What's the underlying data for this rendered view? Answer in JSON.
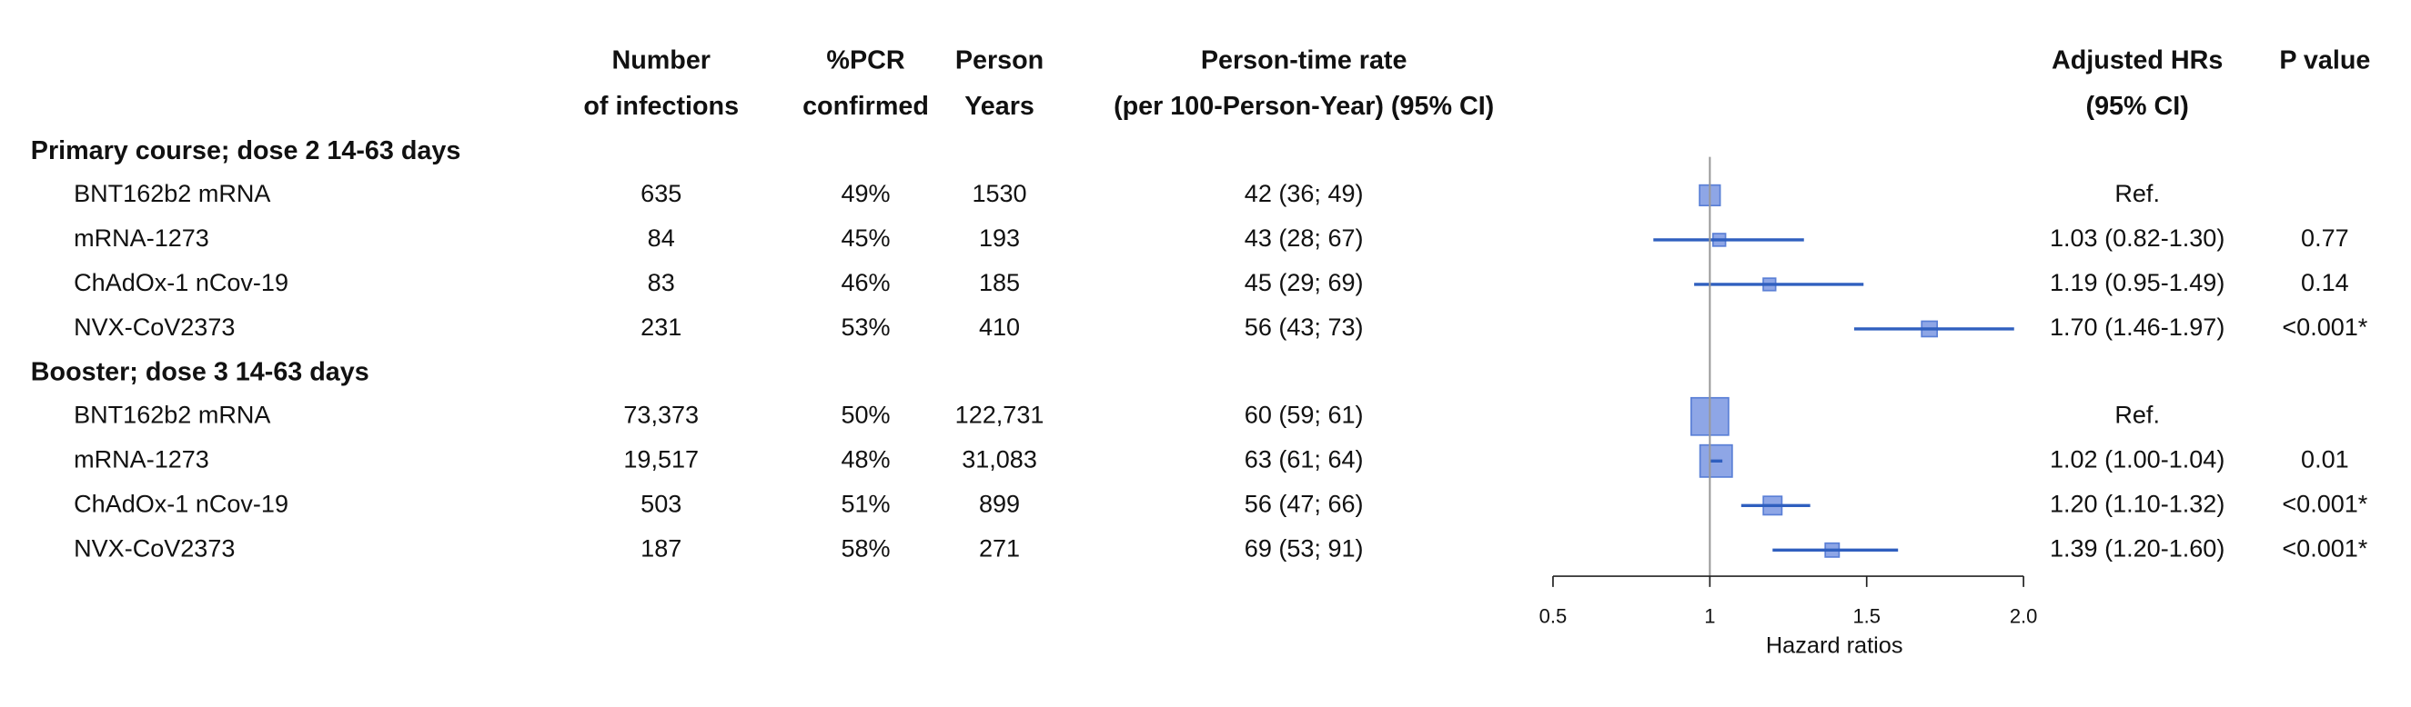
{
  "chart_data": {
    "type": "forest",
    "headers": {
      "infections": [
        "Number",
        "of infections"
      ],
      "pcr": [
        "%PCR",
        "confirmed"
      ],
      "person_years": [
        "Person",
        "Years"
      ],
      "rate": [
        "Person-time rate",
        "(per 100-Person-Year) (95% CI)"
      ],
      "hr": [
        "Adjusted HRs",
        "(95% CI)"
      ],
      "p": [
        "P value"
      ]
    },
    "groups": [
      {
        "label": "Primary course; dose 2 14-63 days",
        "rows": [
          {
            "name": "BNT162b2 mRNA",
            "infections": "635",
            "pcr": "49%",
            "person_years": "1530",
            "rate": "42 (36; 49)",
            "hr": 1,
            "hr_label": "Ref."
          },
          {
            "name": "mRNA-1273",
            "infections": "84",
            "pcr": "45%",
            "person_years": "193",
            "rate": "43 (28; 67)",
            "hr": 1.03,
            "lo": 0.82,
            "hi": 1.3,
            "hr_label": "1.03 (0.82-1.30)",
            "p": "0.77"
          },
          {
            "name": "ChAdOx-1 nCov-19",
            "infections": "83",
            "pcr": "46%",
            "person_years": "185",
            "rate": "45 (29; 69)",
            "hr": 1.19,
            "lo": 0.95,
            "hi": 1.49,
            "hr_label": "1.19 (0.95-1.49)",
            "p": "0.14"
          },
          {
            "name": "NVX-CoV2373",
            "infections": "231",
            "pcr": "53%",
            "person_years": "410",
            "rate": "56 (43; 73)",
            "hr": 1.7,
            "lo": 1.46,
            "hi": 1.97,
            "hr_label": "1.70 (1.46-1.97)",
            "p": "<0.001*"
          }
        ]
      },
      {
        "label": "Booster; dose 3 14-63 days",
        "rows": [
          {
            "name": "BNT162b2 mRNA",
            "infections": "73,373",
            "pcr": "50%",
            "person_years": "122,731",
            "rate": "60 (59; 61)",
            "hr": 1,
            "hr_label": "Ref."
          },
          {
            "name": "mRNA-1273",
            "infections": "19,517",
            "pcr": "48%",
            "person_years": "31,083",
            "rate": "63 (61; 64)",
            "hr": 1.02,
            "lo": 1.0,
            "hi": 1.04,
            "hr_label": "1.02 (1.00-1.04)",
            "p": "0.01"
          },
          {
            "name": "ChAdOx-1 nCov-19",
            "infections": "503",
            "pcr": "51%",
            "person_years": "899",
            "rate": "56 (47; 66)",
            "hr": 1.2,
            "lo": 1.1,
            "hi": 1.32,
            "hr_label": "1.20 (1.10-1.32)",
            "p": "<0.001*"
          },
          {
            "name": "NVX-CoV2373",
            "infections": "187",
            "pcr": "58%",
            "person_years": "271",
            "rate": "69 (53; 91)",
            "hr": 1.39,
            "lo": 1.2,
            "hi": 1.6,
            "hr_label": "1.39 (1.20-1.60)",
            "p": "<0.001*"
          }
        ]
      }
    ],
    "xlim": [
      0.5,
      2
    ],
    "xticks": [
      0.5,
      1,
      1.5,
      {
        "value": 2,
        "label": "2.0"
      }
    ],
    "ref_line": 1,
    "xlabel": "Hazard ratios",
    "marker_color": "#8ea6e6",
    "marker_edge": "#5a7fd6",
    "ci_color": "#2f5fbf"
  }
}
